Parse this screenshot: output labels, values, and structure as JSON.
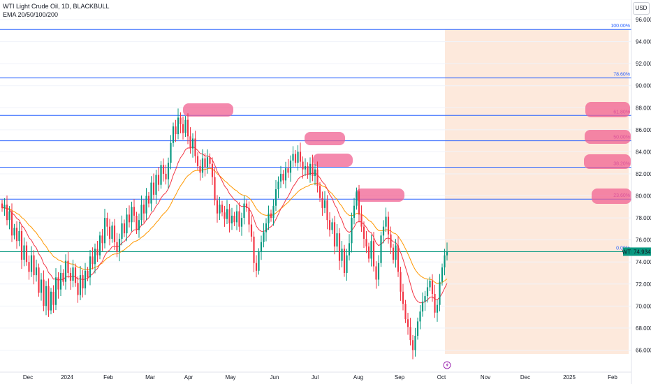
{
  "header": {
    "symbol_line": "WTI Light Crude Oil, 1D, BLACKBULL",
    "indicator_line": "EMA 20/50/100/200",
    "currency": "USD"
  },
  "price_label": {
    "symbol": "WTI",
    "value": "74.934"
  },
  "colors": {
    "up": "#089981",
    "down": "#f23645",
    "fib_line": "#2962ff",
    "zone": "#f06292",
    "projection": "#fde9dc",
    "ema_fast": "#f23645",
    "ema_slow": "#ff9800",
    "current_line": "#089981"
  },
  "chart_data": {
    "type": "candlestick",
    "title": "WTI Light Crude Oil, 1D, BLACKBULL",
    "ylim": [
      64,
      96
    ],
    "y_ticks": [
      "66.000",
      "68.000",
      "70.000",
      "72.000",
      "74.000",
      "76.000",
      "78.000",
      "80.000",
      "82.000",
      "84.000",
      "86.000",
      "88.000",
      "90.000",
      "92.000",
      "94.000",
      "96.000"
    ],
    "x_ticks": [
      "Dec",
      "2024",
      "Feb",
      "Mar",
      "Apr",
      "May",
      "Jun",
      "Jul",
      "Aug",
      "Sep",
      "Oct",
      "Nov",
      "Dec",
      "2025",
      "Feb"
    ],
    "fib_levels": [
      {
        "label": "100.00%",
        "price": 95.1
      },
      {
        "label": "78.60%",
        "price": 90.7
      },
      {
        "label": "61.80%",
        "price": 87.3
      },
      {
        "label": "50.00%",
        "price": 85.0
      },
      {
        "label": "38.20%",
        "price": 82.6
      },
      {
        "label": "23.60%",
        "price": 79.7
      },
      {
        "label": "0.00%",
        "price": 74.93
      }
    ],
    "current_price": 74.934,
    "closes": [
      78.9,
      79.2,
      77.8,
      78.6,
      76.4,
      77.1,
      75.9,
      76.8,
      74.2,
      75.5,
      74.0,
      73.1,
      74.6,
      72.8,
      73.5,
      71.2,
      72.4,
      70.0,
      71.8,
      69.6,
      71.3,
      70.1,
      72.6,
      71.5,
      73.0,
      72.2,
      74.1,
      73.0,
      72.3,
      73.5,
      72.1,
      71.0,
      72.8,
      71.6,
      73.2,
      72.6,
      74.5,
      73.8,
      75.2,
      74.6,
      76.4,
      75.7,
      78.0,
      77.2,
      76.1,
      77.3,
      75.8,
      74.9,
      76.1,
      77.5,
      76.6,
      78.3,
      77.6,
      79.0,
      78.2,
      76.9,
      77.8,
      79.2,
      78.4,
      80.0,
      79.3,
      81.2,
      80.1,
      81.9,
      81.0,
      82.8,
      82.0,
      81.5,
      83.0,
      84.8,
      86.3,
      85.6,
      87.1,
      86.5,
      85.7,
      86.9,
      85.4,
      84.3,
      85.2,
      83.6,
      82.7,
      82.1,
      83.4,
      82.6,
      83.5,
      82.9,
      81.7,
      79.6,
      78.4,
      79.2,
      78.5,
      77.9,
      78.8,
      77.5,
      78.2,
      77.6,
      78.6,
      77.2,
      78.0,
      79.3,
      78.9,
      77.4,
      76.3,
      73.9,
      73.2,
      74.9,
      75.8,
      76.7,
      77.5,
      78.4,
      78.0,
      79.1,
      80.6,
      81.3,
      82.0,
      81.4,
      82.5,
      82.1,
      83.2,
      83.8,
      83.0,
      84.0,
      83.1,
      82.4,
      82.7,
      81.9,
      82.9,
      81.8,
      82.4,
      80.9,
      79.8,
      78.9,
      79.6,
      77.8,
      76.9,
      77.6,
      75.4,
      76.6,
      74.1,
      75.2,
      73.0,
      74.6,
      75.7,
      78.0,
      79.1,
      80.4,
      78.3,
      77.2,
      76.1,
      75.4,
      74.3,
      75.9,
      73.6,
      72.4,
      73.9,
      76.4,
      77.2,
      78.1,
      76.5,
      75.3,
      74.2,
      75.5,
      73.1,
      71.3,
      70.2,
      68.8,
      68.1,
      66.9,
      66.0,
      67.3,
      68.6,
      69.5,
      70.4,
      70.9,
      71.7,
      72.3,
      71.1,
      69.4,
      70.1,
      72.2,
      73.5,
      74.6,
      74.93
    ]
  }
}
